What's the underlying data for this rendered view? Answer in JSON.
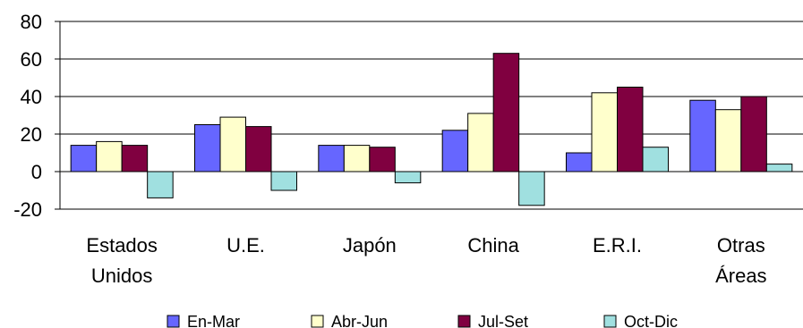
{
  "chart_data": {
    "type": "bar",
    "categories": [
      [
        "Estados",
        "Unidos"
      ],
      [
        "U.E."
      ],
      [
        "Japón"
      ],
      [
        "China"
      ],
      [
        "E.R.I."
      ],
      [
        "Otras",
        "Áreas"
      ]
    ],
    "series": [
      {
        "name": "En-Mar",
        "color": "#6666ff",
        "values": [
          14,
          25,
          14,
          22,
          10,
          38
        ]
      },
      {
        "name": "Abr-Jun",
        "color": "#ffffcc",
        "values": [
          16,
          29,
          14,
          31,
          42,
          33
        ]
      },
      {
        "name": "Jul-Set",
        "color": "#800040",
        "values": [
          14,
          24,
          13,
          63,
          45,
          40
        ]
      },
      {
        "name": "Oct-Dic",
        "color": "#a0e0e0",
        "values": [
          -14,
          -10,
          -6,
          -18,
          13,
          4
        ]
      }
    ],
    "ylim": [
      -20,
      80
    ],
    "yticks": [
      -20,
      0,
      20,
      40,
      60,
      80
    ],
    "grid": true,
    "legend_position": "bottom",
    "title": "",
    "xlabel": "",
    "ylabel": ""
  }
}
